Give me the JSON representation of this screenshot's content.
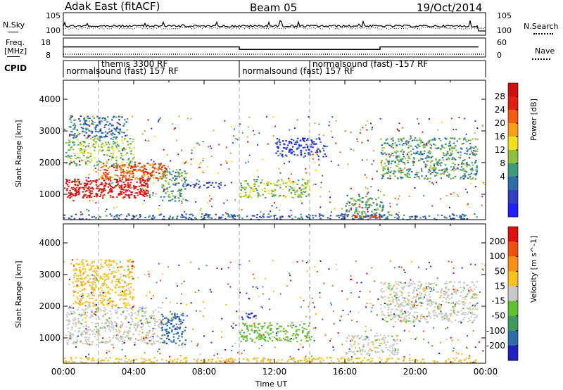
{
  "header": {
    "radar": "Adak East (fitACF)",
    "beam": "Beam 05",
    "date": "19/Oct/2014"
  },
  "status_panel": {
    "nsky_label": "N.Sky",
    "nsearch_label": "N.Search",
    "freq_label": "Freq.",
    "freq_unit": "[MHz]",
    "nave_label": "Nave",
    "cpid_label": "CPID",
    "noise_ticks": [
      "10^5",
      "10^0"
    ],
    "noise_ticks_right": [
      "10^5",
      "10^0"
    ],
    "freq_ticks": [
      "18",
      "8"
    ],
    "nave_ticks": [
      "60",
      "0"
    ],
    "freq_mhz": [
      {
        "from": 0,
        "to": 10,
        "value": 13.2
      },
      {
        "from": 10,
        "to": 18,
        "value": 11.5
      },
      {
        "from": 18,
        "to": 23.6,
        "value": 13.2
      }
    ],
    "cpid_segments": [
      {
        "start_hour": 0,
        "label": "normalsound (fast) 157 RF",
        "row": 2
      },
      {
        "start_hour": 2,
        "label": "themis 3300 RF",
        "row": 1
      },
      {
        "start_hour": 10,
        "label": "normalsound (fast) 157 RF",
        "row": 2
      },
      {
        "start_hour": 14,
        "label": "normalsound (fast) -157 RF",
        "row": 1
      }
    ]
  },
  "chart_data": [
    {
      "type": "heatmap",
      "name": "power",
      "xlabel": "",
      "ylabel": "Slant Range [km]",
      "xlim": [
        0,
        24
      ],
      "ylim": [
        200,
        4600
      ],
      "yticks": [
        "1000",
        "2000",
        "3000",
        "4000"
      ],
      "colorbar": {
        "label": "Power [dB]",
        "ticks": [
          "28",
          "24",
          "20",
          "16",
          "12",
          "8",
          "4"
        ],
        "colors": [
          "#2020ff",
          "#3040c0",
          "#2e6ea8",
          "#3e9a7a",
          "#8fc040",
          "#f0e020",
          "#f8a018",
          "#f06010",
          "#e02010",
          "#d01010"
        ]
      },
      "echo_regions": [
        {
          "t": [
            0.1,
            4.8
          ],
          "r": [
            900,
            1500
          ],
          "level": 9
        },
        {
          "t": [
            2.0,
            5.8
          ],
          "r": [
            1500,
            2000
          ],
          "level": 7
        },
        {
          "t": [
            0.1,
            4.0
          ],
          "r": [
            1900,
            2800
          ],
          "level": 4
        },
        {
          "t": [
            0.3,
            3.6
          ],
          "r": [
            2800,
            3500
          ],
          "level": 2
        },
        {
          "t": [
            5.5,
            7.0
          ],
          "r": [
            800,
            1800
          ],
          "level": 3
        },
        {
          "t": [
            7.0,
            9.0
          ],
          "r": [
            1200,
            1400
          ],
          "level": 1
        },
        {
          "t": [
            10.0,
            14.0
          ],
          "r": [
            900,
            1500
          ],
          "level": 4
        },
        {
          "t": [
            12.0,
            15.0
          ],
          "r": [
            2200,
            2800
          ],
          "level": 1
        },
        {
          "t": [
            16.0,
            18.2
          ],
          "r": [
            300,
            1000
          ],
          "level": 3
        },
        {
          "t": [
            16.0,
            18.0
          ],
          "r": [
            260,
            360
          ],
          "level": 8
        },
        {
          "t": [
            18.0,
            23.5
          ],
          "r": [
            1500,
            2800
          ],
          "level": 3
        },
        {
          "t": [
            0.0,
            23.5
          ],
          "r": [
            220,
            400
          ],
          "level": 2
        }
      ]
    },
    {
      "type": "heatmap",
      "name": "velocity",
      "xlabel": "Time UT",
      "ylabel": "Slant Range [km]",
      "xlim": [
        0,
        24
      ],
      "ylim": [
        200,
        4600
      ],
      "xticks": [
        "00:00",
        "04:00",
        "08:00",
        "12:00",
        "16:00",
        "20:00",
        "00:00"
      ],
      "yticks": [
        "1000",
        "2000",
        "3000",
        "4000"
      ],
      "colorbar": {
        "label": "Velocity [m s^-1]",
        "ticks": [
          "200",
          "100",
          "50",
          "15",
          "-15",
          "-50",
          "-100",
          "-200"
        ],
        "colors": [
          "#2020c0",
          "#2e6ea8",
          "#3f9a60",
          "#60c030",
          "#c8c8c8",
          "#f8c020",
          "#f89018",
          "#f05010",
          "#e01010"
        ]
      },
      "echo_regions": [
        {
          "t": [
            0.1,
            5.5
          ],
          "r": [
            800,
            2000
          ],
          "v": 4
        },
        {
          "t": [
            0.5,
            4.0
          ],
          "r": [
            2000,
            3500
          ],
          "v": 5
        },
        {
          "t": [
            5.5,
            7.0
          ],
          "r": [
            800,
            1800
          ],
          "v": 1
        },
        {
          "t": [
            10.0,
            14.0
          ],
          "r": [
            900,
            1500
          ],
          "v": 3
        },
        {
          "t": [
            10.0,
            11.0
          ],
          "r": [
            1600,
            1800
          ],
          "v": 0
        },
        {
          "t": [
            16.0,
            19.0
          ],
          "r": [
            500,
            1100
          ],
          "v": 4
        },
        {
          "t": [
            18.0,
            23.5
          ],
          "r": [
            1500,
            2800
          ],
          "v": 4
        },
        {
          "t": [
            0.0,
            23.5
          ],
          "r": [
            220,
            400
          ],
          "v": 5
        }
      ]
    }
  ]
}
